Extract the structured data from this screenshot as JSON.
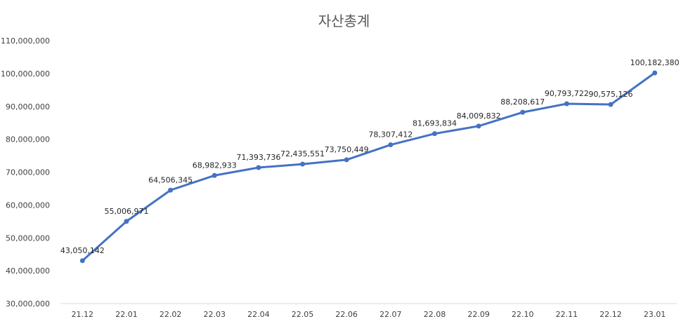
{
  "chart_data": {
    "type": "line",
    "title": "자산총계",
    "xlabel": "",
    "ylabel": "",
    "categories": [
      "21.12",
      "22.01",
      "22.02",
      "22.03",
      "22.04",
      "22.05",
      "22.06",
      "22.07",
      "22.08",
      "22.09",
      "22.10",
      "22.11",
      "22.12",
      "23.01"
    ],
    "series": [
      {
        "values": [
          43050142,
          55006971,
          64506345,
          68982933,
          71393736,
          72435551,
          73750449,
          78307412,
          81693834,
          84009832,
          88208617,
          90793722,
          90575126,
          100182380
        ],
        "data_labels": [
          "43,050,142",
          "55,006,971",
          "64,506,345",
          "68,982,933",
          "71,393,736",
          "72,435,551",
          "73,750,449",
          "78,307,412",
          "81,693,834",
          "84,009,832",
          "88,208,617",
          "90,793,722",
          "90,575,126",
          "100,182,380"
        ],
        "color": "#4472c4"
      }
    ],
    "ylim": [
      30000000,
      110000000
    ],
    "yticks": [
      30000000,
      40000000,
      50000000,
      60000000,
      70000000,
      80000000,
      90000000,
      100000000,
      110000000
    ],
    "ytick_labels": [
      "30,000,000",
      "40,000,000",
      "50,000,000",
      "60,000,000",
      "70,000,000",
      "80,000,000",
      "90,000,000",
      "100,000,000",
      "110,000,000"
    ],
    "grid": false,
    "legend": "none"
  }
}
